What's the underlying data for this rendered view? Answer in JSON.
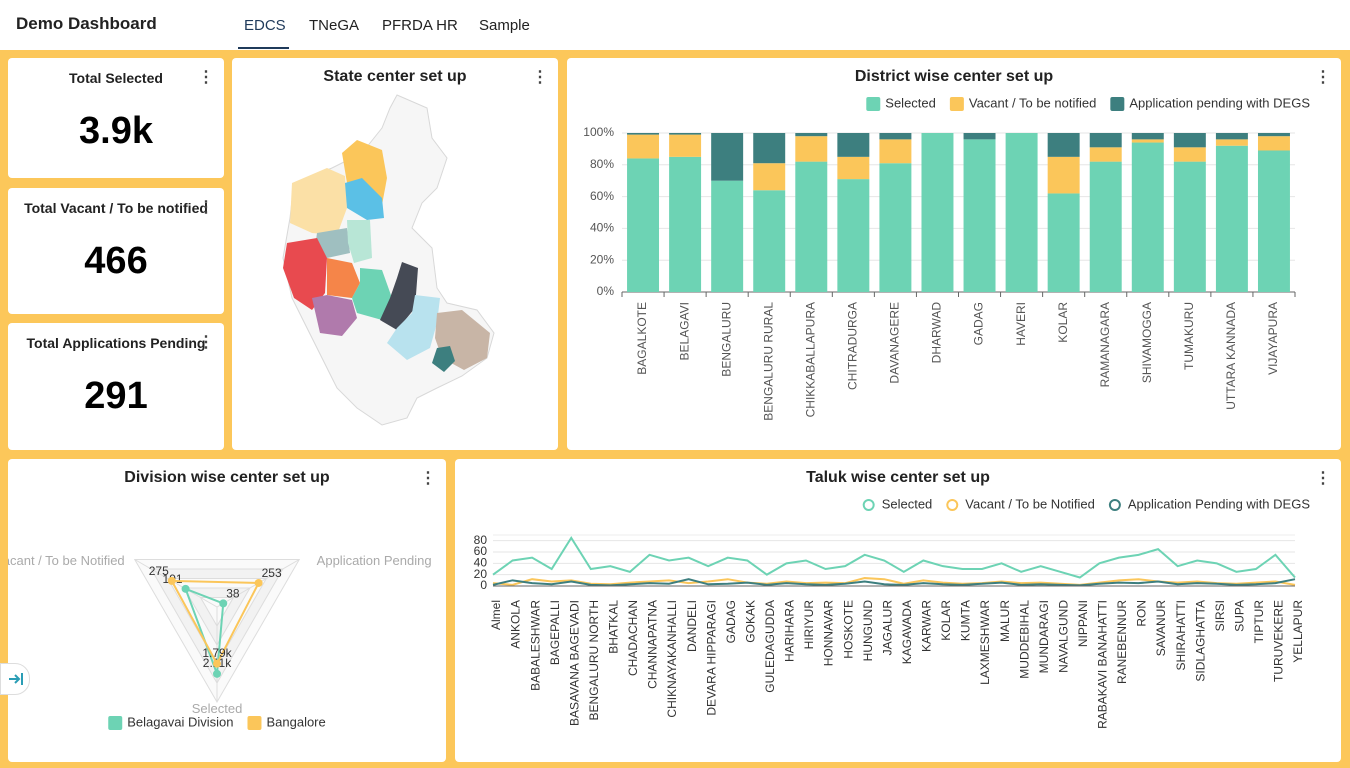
{
  "header": {
    "title": "Demo Dashboard",
    "tabs": [
      "EDCS",
      "TNeGA",
      "PFRDA HR",
      "Sample"
    ]
  },
  "kpis": [
    {
      "label": "Total Selected",
      "value": "3.9k"
    },
    {
      "label": "Total Vacant / To be notified",
      "value": "466"
    },
    {
      "label": "Total Applications Pending",
      "value": "291"
    }
  ],
  "map": {
    "title": "State center set up"
  },
  "chart_data": [
    {
      "type": "stacked_bar",
      "title": "District wise center set up",
      "categories": [
        "BAGALKOTE",
        "BELAGAVI",
        "BENGALURU",
        "BENGALURU RURAL",
        "CHIKKABALLAPURA",
        "CHITRADURGA",
        "DAVANAGERE",
        "DHARWAD",
        "GADAG",
        "HAVERI",
        "KOLAR",
        "RAMANAGARA",
        "SHIVAMOGGA",
        "TUMAKURU",
        "UTTARA KANNADA",
        "VIJAYAPURA"
      ],
      "series": [
        {
          "name": "Selected",
          "color": "#6dd3b4",
          "values": [
            84,
            85,
            70,
            64,
            82,
            71,
            81,
            100,
            96,
            100,
            62,
            82,
            94,
            82,
            92,
            89
          ]
        },
        {
          "name": "Vacant / To be notified",
          "color": "#fbc65a",
          "values": [
            15,
            14,
            0,
            17,
            16,
            14,
            15,
            0,
            0,
            0,
            23,
            9,
            2,
            9,
            4,
            9
          ]
        },
        {
          "name": "Application pending with DEGS",
          "color": "#3d7f7f",
          "values": [
            1,
            1,
            30,
            19,
            2,
            15,
            4,
            0,
            4,
            0,
            15,
            9,
            4,
            9,
            4,
            2
          ]
        }
      ],
      "ylim": [
        0,
        100
      ],
      "yticks": [
        {
          "value": 0,
          "label": "0%"
        },
        {
          "value": 20,
          "label": "20%"
        },
        {
          "value": 40,
          "label": "40%"
        },
        {
          "value": 60,
          "label": "60%"
        },
        {
          "value": 80,
          "label": "80%"
        },
        {
          "value": 100,
          "label": "100%"
        }
      ],
      "grid": true,
      "legend": "top-right"
    },
    {
      "type": "radar",
      "title": "Division wise center set up",
      "indicators": [
        {
          "name": "Selected",
          "max": 3000
        },
        {
          "name": "Vacant / To be Notified",
          "max": 500
        },
        {
          "name": "Application Pending",
          "max": 500
        }
      ],
      "series": [
        {
          "name": "Belagavai Division",
          "color": "#6dd3b4",
          "values": [
            2110,
            191,
            38
          ],
          "value_labels": [
            "2.11k",
            "191",
            "38"
          ]
        },
        {
          "name": "Bangalore",
          "color": "#fbc65a",
          "values": [
            1790,
            275,
            253
          ],
          "value_labels": [
            "1.79k",
            "275",
            "253"
          ]
        }
      ],
      "legend": "bottom"
    },
    {
      "type": "line",
      "title": "Taluk wise center set up",
      "categories": [
        "Almel",
        "ANKOLA",
        "BABALESHWAR",
        "BAGEPALLI",
        "BASAVANA BAGEVADI",
        "BENGALURU NORTH",
        "BHATKAL",
        "CHADACHAN",
        "CHANNAPATNA",
        "CHIKNAYAKANHALLI",
        "DANDELI",
        "DEVARA HIPPARAGI",
        "GADAG",
        "GOKAK",
        "GULEDAGUDDA",
        "HARIHARA",
        "HIRIYUR",
        "HONNAVAR",
        "HOSKOTE",
        "HUNGUND",
        "JAGALUR",
        "KAGAVADA",
        "KARWAR",
        "KOLAR",
        "KUMTA",
        "LAXMESHWAR",
        "MALUR",
        "MUDDEBIHAL",
        "MUNDARAGI",
        "NAVALGUND",
        "NIPPANI",
        "RABAKAVI BANAHATTI",
        "RANEBENNUR",
        "RON",
        "SAVANUR",
        "SHIRAHATTI",
        "SIDLAGHATTA",
        "SIRSI",
        "SUPA",
        "TIPTUR",
        "TURUVEKERE",
        "YELLAPUR"
      ],
      "series": [
        {
          "name": "Selected",
          "color": "#6dd3b4",
          "values": [
            20,
            45,
            50,
            30,
            85,
            30,
            35,
            25,
            55,
            45,
            50,
            35,
            50,
            45,
            20,
            40,
            45,
            30,
            35,
            55,
            45,
            25,
            45,
            35,
            30,
            30,
            40,
            25,
            35,
            25,
            15,
            40,
            50,
            55,
            65,
            35,
            45,
            40,
            25,
            30,
            55,
            15
          ]
        },
        {
          "name": "Vacant / To be Notified",
          "color": "#fbc65a",
          "values": [
            5,
            2,
            12,
            8,
            10,
            4,
            3,
            6,
            8,
            10,
            5,
            8,
            12,
            6,
            4,
            8,
            5,
            6,
            5,
            14,
            12,
            4,
            10,
            6,
            4,
            5,
            8,
            5,
            6,
            4,
            2,
            6,
            10,
            12,
            8,
            6,
            8,
            5,
            4,
            6,
            8,
            2
          ]
        },
        {
          "name": "Application Pending with DEGS",
          "color": "#3d7f7f",
          "values": [
            2,
            10,
            5,
            3,
            8,
            2,
            1,
            3,
            5,
            4,
            12,
            3,
            4,
            6,
            2,
            5,
            3,
            2,
            4,
            8,
            3,
            2,
            5,
            3,
            2,
            4,
            6,
            2,
            3,
            2,
            1,
            4,
            6,
            5,
            8,
            3,
            5,
            4,
            2,
            3,
            5,
            12
          ]
        }
      ],
      "ylim": [
        0,
        90
      ],
      "yticks": [
        0,
        20,
        40,
        60,
        80
      ],
      "grid": true,
      "legend": "top-right"
    }
  ]
}
